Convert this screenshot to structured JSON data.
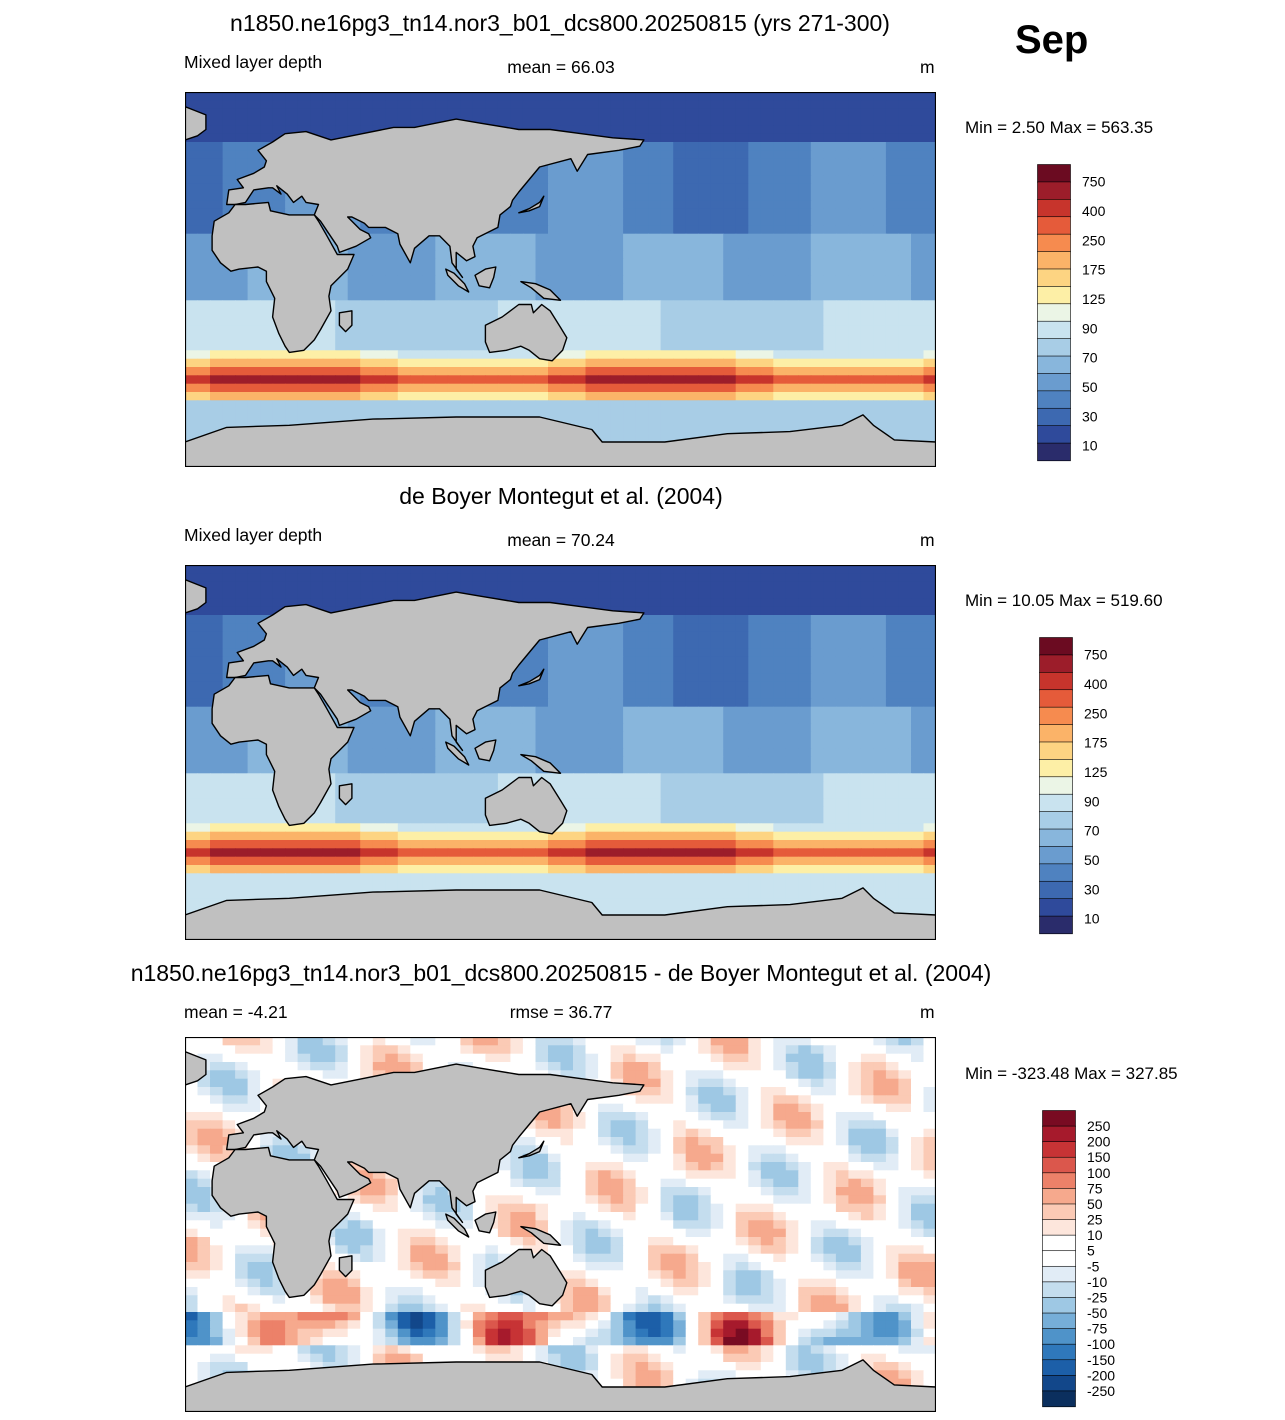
{
  "figure": {
    "month": "Sep",
    "colors": {
      "land": "#c0c0c0",
      "coast": "#000000",
      "mld_scale": [
        "#2a2c6b",
        "#2f4a9b",
        "#3d69b1",
        "#4f82c0",
        "#6a9ccf",
        "#88b6dc",
        "#a8cde6",
        "#c9e3ef",
        "#ebf5e6",
        "#fdefa6",
        "#fdd482",
        "#fbb368",
        "#f68b4f",
        "#e55b3a",
        "#c7342c",
        "#9c1d2a",
        "#6b0b21"
      ],
      "diff_scale": [
        "#0b2f5e",
        "#12478a",
        "#1c5fa8",
        "#2f78bb",
        "#4f93c9",
        "#76aed8",
        "#9ec8e4",
        "#c4ddee",
        "#e1ecf6",
        "#ffffff",
        "#ffffff",
        "#fde6dc",
        "#fbcab5",
        "#f6a98d",
        "#ec8169",
        "#db574c",
        "#c73335",
        "#a61a2c",
        "#790b22"
      ]
    }
  },
  "chart_data": [
    {
      "type": "heatmap",
      "title": "n1850.ne16pg3_tn14.nor3_b01_dcs800.20250815 (yrs 271-300)",
      "left_label": "Mixed layer depth",
      "center_label": "mean =  66.03",
      "units": "m",
      "min_max": "Min =   2.50 Max = 563.35",
      "mean": 66.03,
      "min": 2.5,
      "max": 563.35,
      "colorbar_levels": [
        "750",
        "400",
        "250",
        "175",
        "125",
        "90",
        "70",
        "50",
        "30",
        "10"
      ]
    },
    {
      "type": "heatmap",
      "title": "de Boyer Montegut et al. (2004)",
      "left_label": "Mixed layer depth",
      "center_label": "mean =  70.24",
      "units": "m",
      "min_max": "Min =  10.05 Max = 519.60",
      "mean": 70.24,
      "min": 10.05,
      "max": 519.6,
      "colorbar_levels": [
        "750",
        "400",
        "250",
        "175",
        "125",
        "90",
        "70",
        "50",
        "30",
        "10"
      ]
    },
    {
      "type": "heatmap",
      "title": "n1850.ne16pg3_tn14.nor3_b01_dcs800.20250815 - de Boyer Montegut et al. (2004)",
      "left_label": "mean =  -4.21",
      "center_label": "rmse =  36.77",
      "units": "m",
      "min_max": "Min = -323.48 Max = 327.85",
      "mean": -4.21,
      "rmse": 36.77,
      "min": -323.48,
      "max": 327.85,
      "colorbar_levels": [
        "250",
        "200",
        "150",
        "100",
        "75",
        "50",
        "25",
        "10",
        "5",
        "-5",
        "-10",
        "-25",
        "-50",
        "-75",
        "-100",
        "-150",
        "-200",
        "-250"
      ]
    }
  ]
}
